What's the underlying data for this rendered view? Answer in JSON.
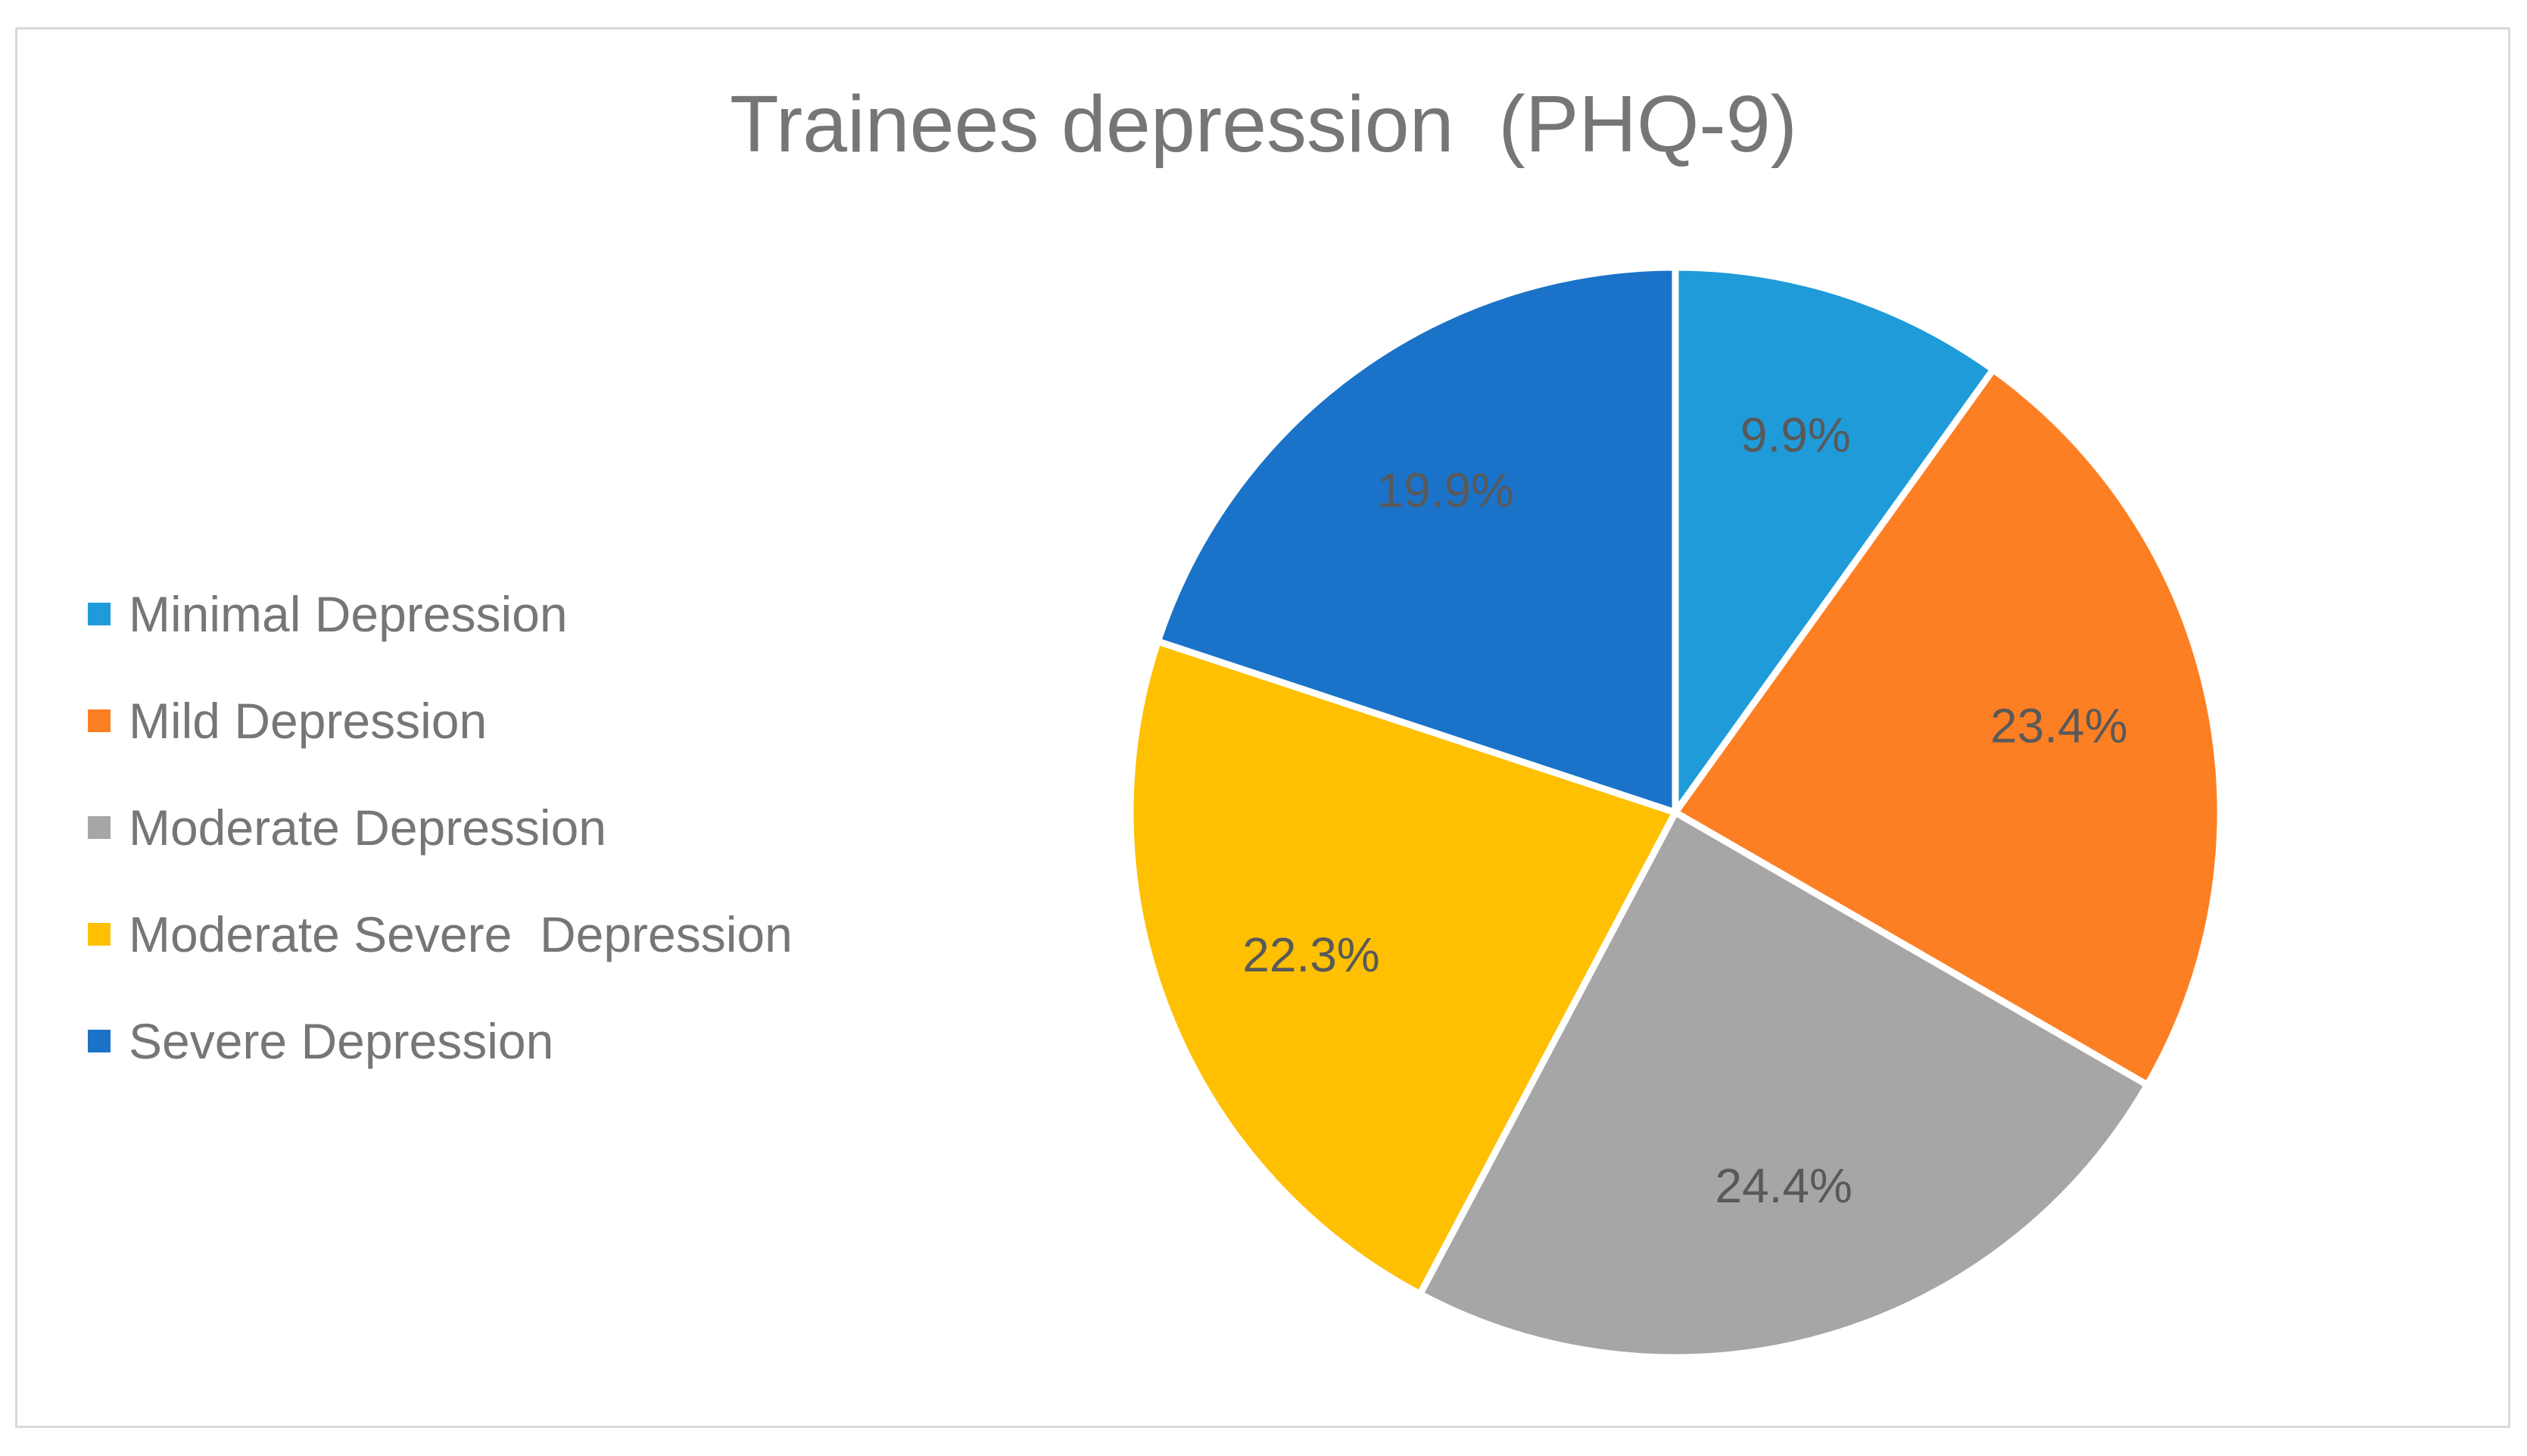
{
  "chart_data": {
    "type": "pie",
    "title": "Trainees depression  (PHQ-9)",
    "categories": [
      "Minimal Depression",
      "Mild Depression",
      "Moderate Depression",
      "Moderate Severe  Depression",
      "Severe Depression"
    ],
    "values": [
      9.9,
      23.4,
      24.4,
      22.3,
      19.9
    ],
    "data_labels": [
      "9.9%",
      "23.4%",
      "24.4%",
      "22.3%",
      "19.9%"
    ],
    "colors": [
      "#1f9bd9",
      "#fd7f24",
      "#a6a6a6",
      "#fec000",
      "#1a73c8"
    ],
    "legend_position": "left",
    "start_angle": "12 o'clock",
    "direction": "clockwise"
  }
}
